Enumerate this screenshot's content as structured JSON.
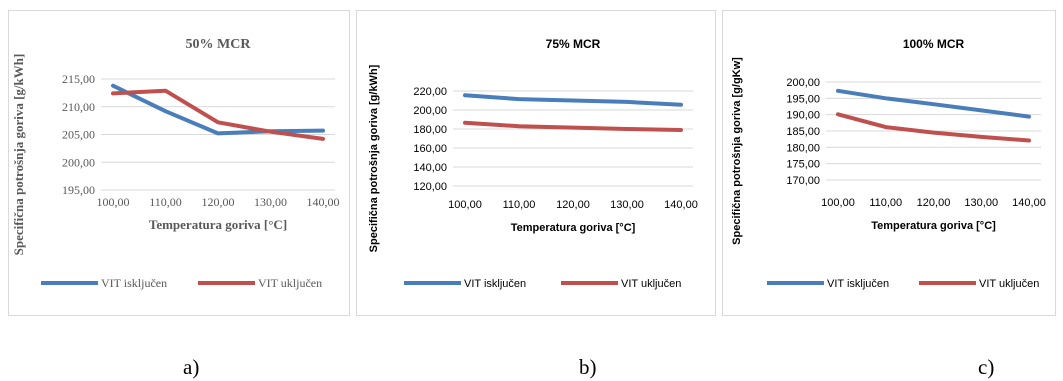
{
  "chart_data": [
    {
      "type": "line",
      "title": "50% MCR",
      "xlabel": "Temperatura goriva [°C]",
      "ylabel": "Specifična potrošnja goriva [g/kWh]",
      "categories": [
        "100,00",
        "110,00",
        "120,00",
        "130,00",
        "140,00"
      ],
      "ylim": [
        195,
        215
      ],
      "yticks": [
        "215,00",
        "210,00",
        "205,00",
        "200,00",
        "195,00"
      ],
      "series": [
        {
          "name": "VIT isključen",
          "color": "#4a7ebb",
          "values": [
            213.8,
            209.2,
            205.2,
            205.6,
            205.7
          ]
        },
        {
          "name": "VIT uključen",
          "color": "#c0504d",
          "values": [
            212.4,
            212.9,
            207.2,
            205.5,
            204.2
          ]
        }
      ],
      "legend": "bottom",
      "grid": true
    },
    {
      "type": "line",
      "title": "75% MCR",
      "xlabel": "Temperatura goriva [°C]",
      "ylabel": "Specifična potrošnja goriva [g/kWh]",
      "categories": [
        "100,00",
        "110,00",
        "120,00",
        "130,00",
        "140,00"
      ],
      "ylim": [
        120,
        220
      ],
      "yticks": [
        "220,00",
        "200,00",
        "180,00",
        "160,00",
        "140,00",
        "120,00"
      ],
      "series": [
        {
          "name": "VIT isključen",
          "color": "#4a7ebb",
          "values": [
            215.5,
            211.5,
            210.0,
            208.5,
            205.5
          ]
        },
        {
          "name": "VIT uključen",
          "color": "#c0504d",
          "values": [
            186.5,
            183.0,
            181.5,
            180.0,
            179.0
          ]
        }
      ],
      "legend": "bottom",
      "grid": true
    },
    {
      "type": "line",
      "title": "100% MCR",
      "xlabel": "Temperatura goriva [°C]",
      "ylabel": "Specifična potrošnja goriva [g/gKw]",
      "categories": [
        "100,00",
        "110,00",
        "120,00",
        "130,00",
        "140,00"
      ],
      "ylim": [
        170,
        200
      ],
      "yticks": [
        "200,00",
        "195,00",
        "190,00",
        "185,00",
        "180,00",
        "175,00",
        "170,00"
      ],
      "series": [
        {
          "name": "VIT isključen",
          "color": "#4a7ebb",
          "values": [
            197.3,
            195.0,
            193.2,
            191.3,
            189.4
          ]
        },
        {
          "name": "VIT uključen",
          "color": "#c0504d",
          "values": [
            190.1,
            186.2,
            184.5,
            183.2,
            182.1
          ]
        }
      ],
      "legend": "bottom",
      "grid": true
    }
  ],
  "captions": [
    "a)",
    "b)",
    "c)"
  ]
}
